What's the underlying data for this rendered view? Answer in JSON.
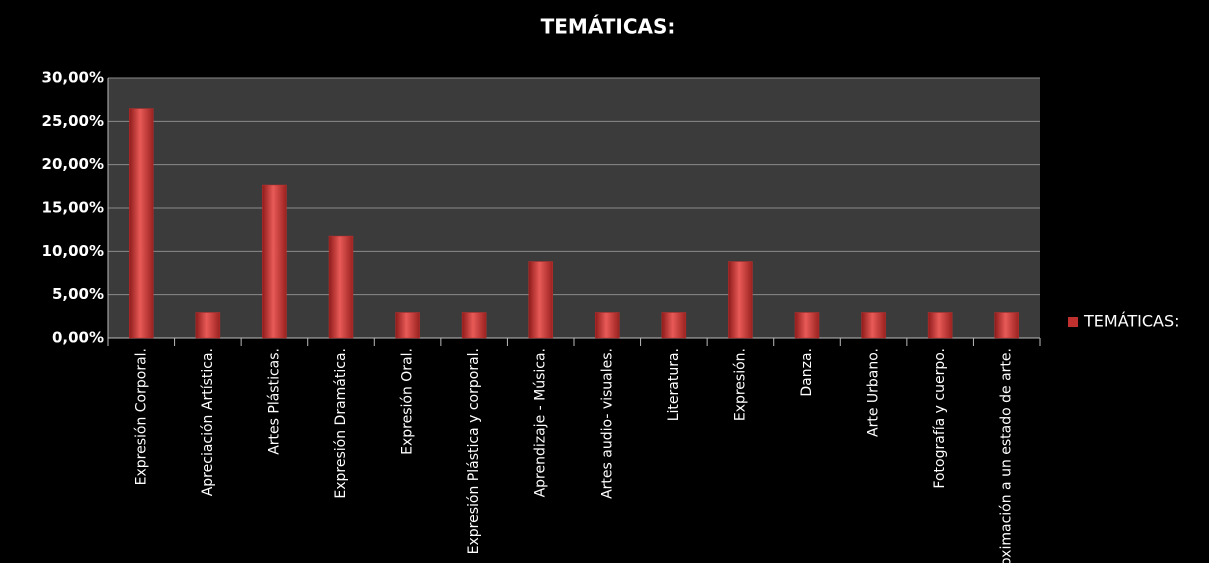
{
  "chart_data": {
    "type": "bar",
    "title": "TEMÁTICAS:",
    "categories": [
      "Expresión Corporal.",
      "Apreciación Artística.",
      "Artes Plásticas.",
      "Expresión Dramática.",
      "Expresión Oral.",
      "Expresión Plástica y corporal.",
      "Aprendizaje - Música.",
      "Artes audio- visuales.",
      "Literatura.",
      "Expresión.",
      "Danza.",
      "Arte Urbano.",
      "Fotografía y cuerpo.",
      "Aproximación a un estado de arte."
    ],
    "series": [
      {
        "name": "TEMÁTICAS:",
        "color": "#c0302e",
        "values": [
          26.47,
          2.94,
          17.65,
          11.76,
          2.94,
          2.94,
          8.82,
          2.94,
          2.94,
          8.82,
          2.94,
          2.94,
          2.94,
          2.94
        ]
      }
    ],
    "ylim": [
      0,
      30
    ],
    "yticks": [
      {
        "value": 0,
        "label": "0,00%"
      },
      {
        "value": 5,
        "label": "5,00%"
      },
      {
        "value": 10,
        "label": "10,00%"
      },
      {
        "value": 15,
        "label": "15,00%"
      },
      {
        "value": 20,
        "label": "20,00%"
      },
      {
        "value": 25,
        "label": "25,00%"
      },
      {
        "value": 30,
        "label": "30,00%"
      }
    ],
    "grid": true,
    "legend": "right"
  }
}
